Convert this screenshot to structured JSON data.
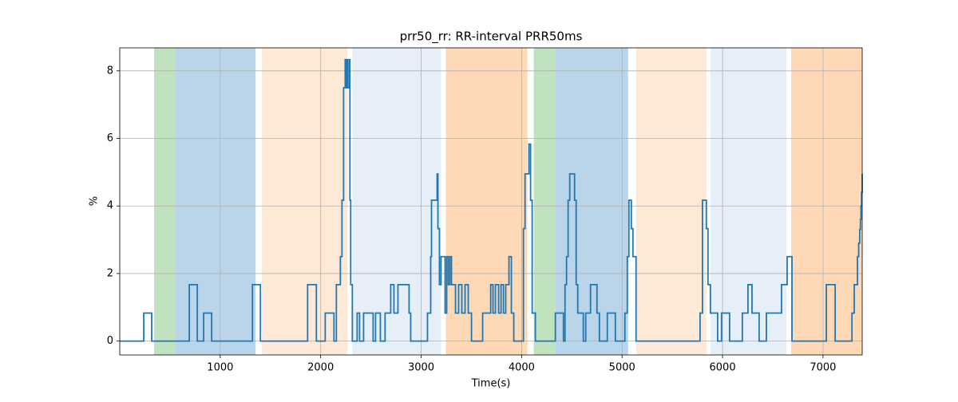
{
  "chart_data": {
    "type": "step-line",
    "title": "prr50_rr: RR-interval PRR50ms",
    "xlabel": "Time(s)",
    "ylabel": "%",
    "xlim": [
      0,
      7390
    ],
    "ylim": [
      -0.41,
      8.68
    ],
    "xticks": [
      1000,
      2000,
      3000,
      4000,
      5000,
      6000,
      7000
    ],
    "yticks": [
      0,
      2,
      4,
      6,
      8
    ],
    "grid": true,
    "spans": [
      {
        "start": 342,
        "end": 549,
        "color": "#c0e2bf"
      },
      {
        "start": 549,
        "end": 1352,
        "color": "#bad5e9"
      },
      {
        "start": 1416,
        "end": 2267,
        "color": "#fee9d7"
      },
      {
        "start": 2315,
        "end": 3198,
        "color": "#e6eef8"
      },
      {
        "start": 3246,
        "end": 4057,
        "color": "#ffd8b6"
      },
      {
        "start": 4121,
        "end": 4336,
        "color": "#c0e2bf"
      },
      {
        "start": 4336,
        "end": 5060,
        "color": "#bad5e9"
      },
      {
        "start": 5139,
        "end": 5839,
        "color": "#fee9d7"
      },
      {
        "start": 5879,
        "end": 6635,
        "color": "#e6eef8"
      },
      {
        "start": 6683,
        "end": 7390,
        "color": "#ffd8b6"
      }
    ],
    "series": [
      {
        "color": "#1f77b4",
        "x": [
          0,
          239,
          318,
          692,
          772,
          835,
          915,
          1321,
          1400,
          1870,
          1957,
          2045,
          2132,
          2156,
          2196,
          2212,
          2228,
          2244,
          2252,
          2260,
          2267,
          2283,
          2291,
          2299,
          2315,
          2363,
          2387,
          2427,
          2522,
          2546,
          2594,
          2641,
          2697,
          2729,
          2769,
          2880,
          2896,
          3063,
          3095,
          3103,
          3159,
          3167,
          3182,
          3198,
          3238,
          3254,
          3270,
          3286,
          3302,
          3342,
          3373,
          3405,
          3437,
          3469,
          3501,
          3612,
          3692,
          3715,
          3739,
          3771,
          3795,
          3819,
          3842,
          3874,
          3898,
          3922,
          4018,
          4034,
          4073,
          4089,
          4105,
          4137,
          4336,
          4416,
          4432,
          4447,
          4463,
          4479,
          4527,
          4543,
          4559,
          4614,
          4638,
          4686,
          4750,
          4774,
          4853,
          4933,
          5028,
          5052,
          5068,
          5092,
          5108,
          5139,
          5776,
          5800,
          5839,
          5855,
          5879,
          5951,
          5990,
          6070,
          6197,
          6253,
          6293,
          6364,
          6436,
          6587,
          6643,
          6691,
          7033,
          7121,
          7288,
          7311,
          7343,
          7355,
          7365,
          7372,
          7378,
          7384,
          7390
        ],
        "values": [
          0,
          0.83,
          0,
          1.67,
          0,
          0.83,
          0,
          1.67,
          0,
          1.67,
          0,
          0.83,
          0,
          1.67,
          2.5,
          4.17,
          7.5,
          8.33,
          7.5,
          8.33,
          7.5,
          8.33,
          4.17,
          1.67,
          0,
          0.83,
          0,
          0.83,
          0,
          0.83,
          0,
          0.83,
          1.67,
          0.83,
          1.67,
          0.83,
          0,
          0.83,
          2.5,
          4.17,
          4.95,
          3.33,
          1.67,
          2.5,
          0.83,
          2.5,
          1.67,
          2.5,
          1.67,
          0.83,
          1.67,
          0.83,
          1.67,
          0.83,
          0,
          0.83,
          1.67,
          0.83,
          1.67,
          0.83,
          1.67,
          0.83,
          1.67,
          2.5,
          0.83,
          0,
          3.33,
          4.95,
          5.83,
          4.17,
          0.83,
          0,
          0.83,
          0,
          1.67,
          2.5,
          4.17,
          4.95,
          4.17,
          1.67,
          0.83,
          0,
          0.83,
          1.67,
          0.83,
          0,
          0.83,
          0,
          0.83,
          2.5,
          4.17,
          3.33,
          2.5,
          0,
          0.83,
          4.17,
          3.33,
          1.67,
          0.83,
          0,
          0.83,
          0,
          0.83,
          1.67,
          0.83,
          0,
          0.83,
          1.67,
          2.5,
          0,
          1.67,
          0,
          0.83,
          1.67,
          2.5,
          2.9,
          3.3,
          3.6,
          4.0,
          4.4,
          4.95
        ]
      }
    ]
  }
}
